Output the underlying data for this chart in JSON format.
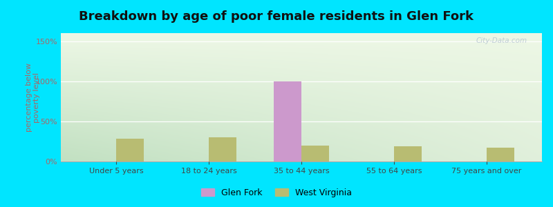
{
  "title": "Breakdown by age of poor female residents in Glen Fork",
  "ylabel": "percentage below\npoverty level",
  "categories": [
    "Under 5 years",
    "18 to 24 years",
    "35 to 44 years",
    "55 to 64 years",
    "75 years and over"
  ],
  "glen_fork": [
    0,
    0,
    100,
    0,
    0
  ],
  "west_virginia": [
    28,
    30,
    20,
    19,
    17
  ],
  "glen_fork_color": "#cc99cc",
  "west_virginia_color": "#b8bc72",
  "yticks": [
    0,
    50,
    100,
    150
  ],
  "ytick_labels": [
    "0%",
    "50%",
    "100%",
    "150%"
  ],
  "ylim": [
    0,
    160
  ],
  "bg_color_topleft": "#c8dfc8",
  "bg_color_topright": "#e8efe8",
  "bg_color_bottom": "#e8f0e0",
  "outer_bg": "#00e5ff",
  "bar_width": 0.3,
  "title_fontsize": 13,
  "axis_label_fontsize": 8,
  "tick_fontsize": 8,
  "legend_fontsize": 9,
  "ytick_color": "#aa6666",
  "ylabel_color": "#aa6666",
  "watermark": "City-Data.com"
}
